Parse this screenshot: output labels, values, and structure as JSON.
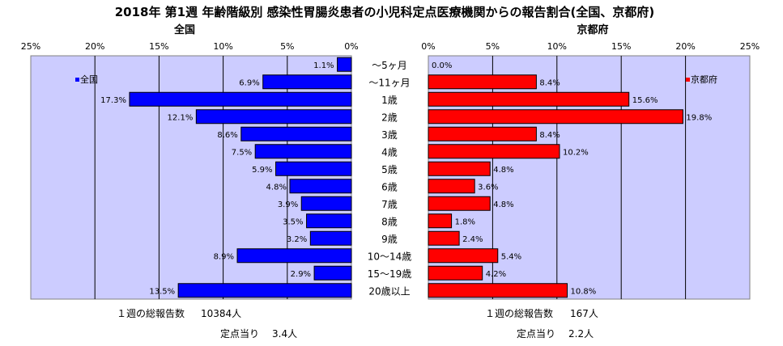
{
  "title": "2018年 第1週 年齢階級別 感染性胃腸炎患者の小児科定点医療機関からの報告割合(全国、京都府)",
  "colors": {
    "national": "#0000ff",
    "kyoto": "#ff0000",
    "plot_bg": "#ccccff"
  },
  "chart_data": [
    {
      "type": "bar",
      "title": "全国",
      "orientation": "horizontal",
      "direction": "leftward",
      "xlim": [
        0,
        25
      ],
      "tick_labels": [
        "25%",
        "20%",
        "15%",
        "10%",
        "5%",
        "0%"
      ],
      "legend": {
        "label": "全国",
        "placement": "top-left"
      },
      "categories": [
        "～5ヶ月",
        "～11ヶ月",
        "1歳",
        "2歳",
        "3歳",
        "4歳",
        "5歳",
        "6歳",
        "7歳",
        "8歳",
        "9歳",
        "10～14歳",
        "15～19歳",
        "20歳以上"
      ],
      "values": [
        1.1,
        6.9,
        17.3,
        12.1,
        8.6,
        7.5,
        5.9,
        4.8,
        3.9,
        3.5,
        3.2,
        8.9,
        2.9,
        13.5
      ],
      "value_labels": [
        "1.1%",
        "6.9%",
        "17.3%",
        "12.1%",
        "8.6%",
        "7.5%",
        "5.9%",
        "4.8%",
        "3.9%",
        "3.5%",
        "3.2%",
        "8.9%",
        "2.9%",
        "13.5%"
      ],
      "grid": true
    },
    {
      "type": "bar",
      "title": "京都府",
      "orientation": "horizontal",
      "direction": "rightward",
      "xlim": [
        0,
        25
      ],
      "tick_labels": [
        "0%",
        "5%",
        "10%",
        "15%",
        "20%",
        "25%"
      ],
      "legend": {
        "label": "京都府",
        "placement": "top-right"
      },
      "categories": [
        "～5ヶ月",
        "～11ヶ月",
        "1歳",
        "2歳",
        "3歳",
        "4歳",
        "5歳",
        "6歳",
        "7歳",
        "8歳",
        "9歳",
        "10～14歳",
        "15～19歳",
        "20歳以上"
      ],
      "values": [
        0.0,
        8.4,
        15.6,
        19.8,
        8.4,
        10.2,
        4.8,
        3.6,
        4.8,
        1.8,
        2.4,
        5.4,
        4.2,
        10.8
      ],
      "value_labels": [
        "0.0%",
        "8.4%",
        "15.6%",
        "19.8%",
        "8.4%",
        "10.2%",
        "4.8%",
        "3.6%",
        "4.8%",
        "1.8%",
        "2.4%",
        "5.4%",
        "4.2%",
        "10.8%"
      ],
      "grid": true
    }
  ],
  "footer": {
    "national": {
      "reports_label": "１週の総報告数",
      "reports_value": "10384人",
      "per_site_label": "定点当り",
      "per_site_value": "3.4人"
    },
    "kyoto": {
      "reports_label": "１週の総報告数",
      "reports_value": "167人",
      "per_site_label": "定点当り",
      "per_site_value": "2.2人"
    }
  }
}
